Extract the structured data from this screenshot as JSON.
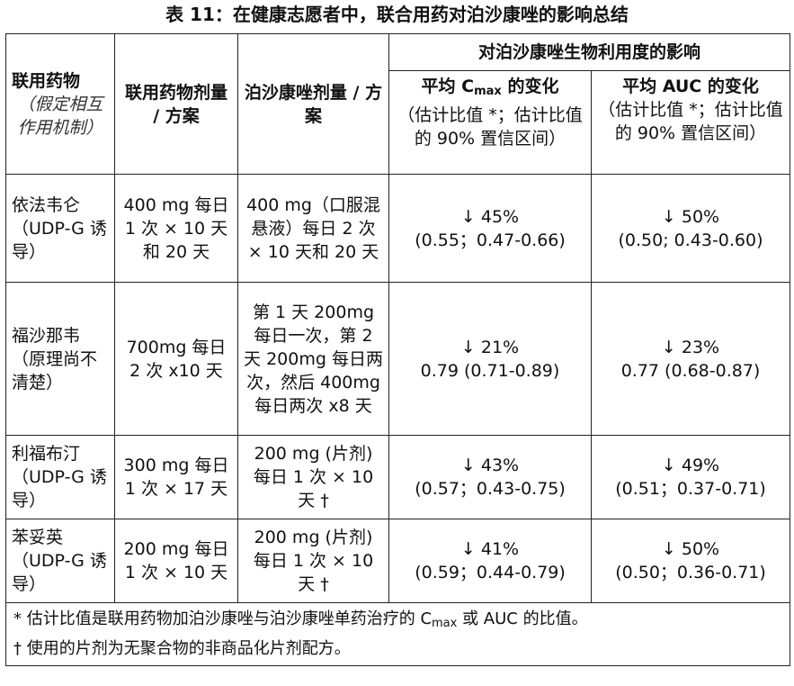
{
  "title": "表 11：在健康志愿者中，联合用药对泊沙康唑的影响总结",
  "headers": {
    "col1_label": "联用药物",
    "col1_note": "（假定相互作用机制）",
    "col2": "联用药物剂量 / 方案",
    "col3": "泊沙康唑剂量 / 方案",
    "group": "对泊沙康唑生物利用度的影响",
    "cmax_pre": "平均 C",
    "cmax_sub": "max",
    "cmax_post": " 的变化",
    "cmax_note": "（估计比值 *；估计比值的 90% 置信区间）",
    "auc_title": "平均 AUC 的变化",
    "auc_note": "（估计比值 *；估计比值的 90% 置信区间）"
  },
  "rows": [
    {
      "drug": "依法韦仑（UDP-G 诱导）",
      "drug_dose": "400 mg 每日 1 次 × 10 天和 20 天",
      "posa_dose": "400 mg（口服混悬液）每日 2 次 × 10 天和 20 天",
      "cmax_change": "↓ 45%",
      "cmax_ci": "(0.55；0.47-0.66)",
      "auc_change": "↓ 50%",
      "auc_ci": "(0.50; 0.43-0.60)"
    },
    {
      "drug": "福沙那韦（原理尚不清楚）",
      "drug_dose": "700mg 每日 2 次 x10 天",
      "posa_dose": "第 1 天 200mg 每日一次，第 2 天 200mg 每日两次，然后 400mg 每日两次 x8 天",
      "cmax_change": "↓ 21%",
      "cmax_ci": "0.79 (0.71-0.89)",
      "auc_change": "↓ 23%",
      "auc_ci": "0.77 (0.68-0.87)"
    },
    {
      "drug": "利福布汀（UDP-G 诱导）",
      "drug_dose": "300 mg 每日 1 次 × 17 天",
      "posa_dose": "200 mg (片剂) 每日 1 次 × 10 天 †",
      "cmax_change": "↓ 43%",
      "cmax_ci": "(0.57；0.43-0.75)",
      "auc_change": "↓ 49%",
      "auc_ci": "(0.51；0.37-0.71)"
    },
    {
      "drug": "苯妥英（UDP-G 诱导）",
      "drug_dose": "200 mg 每日 1 次 × 10 天",
      "posa_dose": "200 mg (片剂) 每日 1 次 × 10 天 †",
      "cmax_change": "↓ 41%",
      "cmax_ci": "(0.59；0.44-0.79)",
      "auc_change": "↓ 50%",
      "auc_ci": "(0.50；0.36-0.71)"
    }
  ],
  "footnotes": {
    "line1_pre": "* 估计比值是联用药物加泊沙康唑与泊沙康唑单药治疗的 C",
    "line1_sub": "max",
    "line1_post": " 或 AUC 的比值。",
    "line2": "† 使用的片剂为无聚合物的非商品化片剂配方。"
  }
}
